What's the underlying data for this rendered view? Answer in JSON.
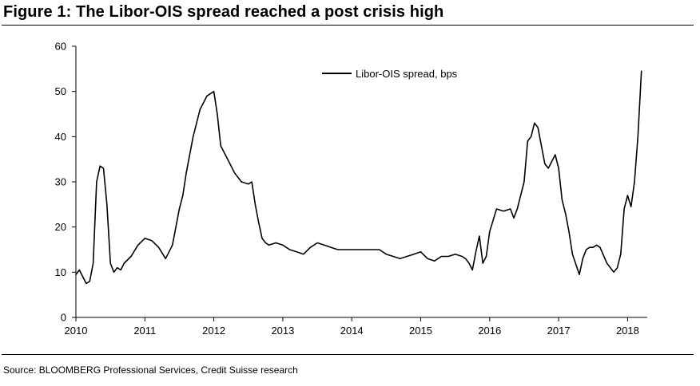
{
  "figure": {
    "title": "Figure 1: The Libor-OIS spread reached a post crisis high",
    "source": "Source: BLOOMBERG Professional Services, Credit Suisse research"
  },
  "chart_data": {
    "type": "line",
    "title": "Figure 1: The Libor-OIS spread reached a post crisis high",
    "xlabel": "",
    "ylabel": "",
    "xlim": [
      2010,
      2018.25
    ],
    "ylim": [
      0,
      60
    ],
    "x_ticks": [
      "2010",
      "2011",
      "2012",
      "2013",
      "2014",
      "2015",
      "2016",
      "2017",
      "2018"
    ],
    "y_ticks": [
      "0",
      "10",
      "20",
      "30",
      "40",
      "50",
      "60"
    ],
    "grid": false,
    "legend": {
      "position": "top-right",
      "entries": [
        "Libor-OIS spread, bps"
      ]
    },
    "colors": {
      "line": "#000000"
    },
    "series": [
      {
        "name": "Libor-OIS spread, bps",
        "x": [
          2010.0,
          2010.05,
          2010.1,
          2010.15,
          2010.2,
          2010.25,
          2010.3,
          2010.35,
          2010.4,
          2010.45,
          2010.5,
          2010.55,
          2010.6,
          2010.65,
          2010.7,
          2010.8,
          2010.9,
          2011.0,
          2011.1,
          2011.2,
          2011.3,
          2011.4,
          2011.5,
          2011.55,
          2011.6,
          2011.7,
          2011.8,
          2011.9,
          2012.0,
          2012.05,
          2012.1,
          2012.2,
          2012.3,
          2012.4,
          2012.5,
          2012.55,
          2012.6,
          2012.65,
          2012.7,
          2012.75,
          2012.8,
          2012.9,
          2013.0,
          2013.1,
          2013.2,
          2013.3,
          2013.4,
          2013.5,
          2013.6,
          2013.7,
          2013.8,
          2013.9,
          2014.0,
          2014.2,
          2014.4,
          2014.5,
          2014.6,
          2014.7,
          2014.8,
          2014.9,
          2015.0,
          2015.1,
          2015.2,
          2015.3,
          2015.4,
          2015.5,
          2015.6,
          2015.65,
          2015.7,
          2015.75,
          2015.8,
          2015.85,
          2015.9,
          2015.95,
          2016.0,
          2016.1,
          2016.2,
          2016.3,
          2016.35,
          2016.4,
          2016.45,
          2016.5,
          2016.55,
          2016.6,
          2016.65,
          2016.7,
          2016.75,
          2016.8,
          2016.85,
          2016.9,
          2016.95,
          2017.0,
          2017.05,
          2017.1,
          2017.15,
          2017.2,
          2017.3,
          2017.35,
          2017.4,
          2017.45,
          2017.5,
          2017.55,
          2017.6,
          2017.7,
          2017.8,
          2017.85,
          2017.9,
          2017.95,
          2018.0,
          2018.05,
          2018.1,
          2018.15,
          2018.2
        ],
        "values": [
          9.5,
          10.5,
          9.0,
          7.5,
          8.0,
          12.0,
          30.0,
          33.5,
          33.0,
          25.0,
          12.0,
          10.0,
          11.0,
          10.5,
          12.0,
          13.5,
          16.0,
          17.5,
          17.0,
          15.5,
          13.0,
          16.0,
          24.0,
          27.0,
          32.0,
          40.0,
          46.0,
          49.0,
          50.0,
          45.0,
          38.0,
          35.0,
          32.0,
          30.0,
          29.5,
          30.0,
          25.0,
          21.0,
          17.5,
          16.5,
          16.0,
          16.5,
          16.0,
          15.0,
          14.5,
          14.0,
          15.5,
          16.5,
          16.0,
          15.5,
          15.0,
          15.0,
          15.0,
          15.0,
          15.0,
          14.0,
          13.5,
          13.0,
          13.5,
          14.0,
          14.5,
          13.0,
          12.5,
          13.5,
          13.5,
          14.0,
          13.5,
          13.0,
          12.0,
          10.5,
          14.5,
          18.0,
          12.0,
          13.5,
          19.0,
          24.0,
          23.5,
          24.0,
          22.0,
          24.0,
          27.0,
          30.0,
          39.0,
          40.0,
          43.0,
          42.0,
          38.0,
          34.0,
          33.0,
          34.5,
          36.0,
          33.0,
          26.0,
          23.0,
          19.0,
          14.0,
          9.5,
          13.0,
          15.0,
          15.5,
          15.5,
          16.0,
          15.5,
          12.0,
          10.0,
          11.0,
          14.0,
          24.0,
          27.0,
          24.5,
          30.0,
          40.0,
          54.5
        ]
      }
    ]
  }
}
